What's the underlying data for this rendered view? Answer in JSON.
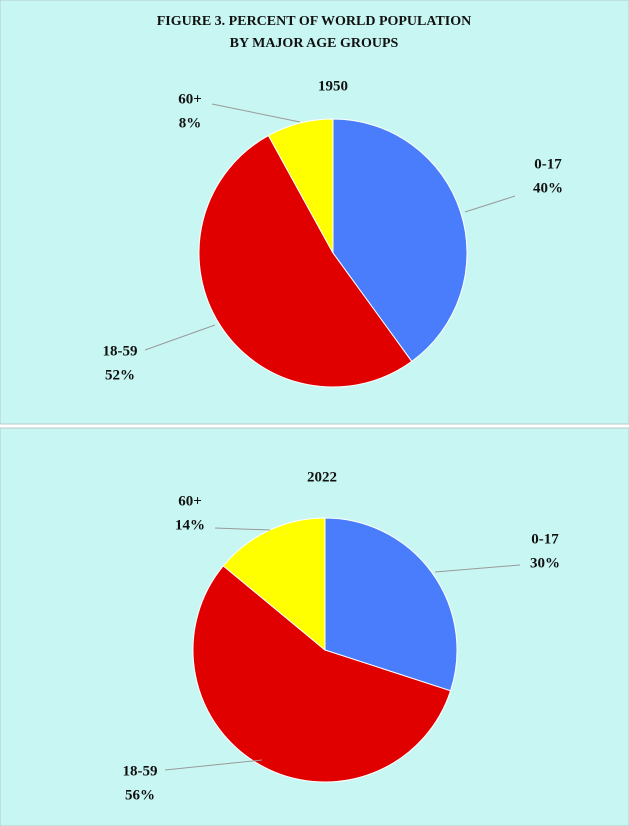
{
  "title": "FIGURE 3. PERCENT OF WORLD POPULATION BY MAJOR AGE GROUPS",
  "chart_data": [
    {
      "type": "pie",
      "title": "1950",
      "categories": [
        "0-17",
        "18-59",
        "60+"
      ],
      "values": [
        40,
        52,
        8
      ],
      "value_labels": [
        "40%",
        "52%",
        "8%"
      ],
      "colors": [
        "#4a7dfc",
        "#e00000",
        "#ffff00"
      ]
    },
    {
      "type": "pie",
      "title": "2022",
      "categories": [
        "0-17",
        "18-59",
        "60+"
      ],
      "values": [
        30,
        56,
        14
      ],
      "value_labels": [
        "30%",
        "56%",
        "14%"
      ],
      "colors": [
        "#4a7dfc",
        "#e00000",
        "#ffff00"
      ]
    }
  ]
}
